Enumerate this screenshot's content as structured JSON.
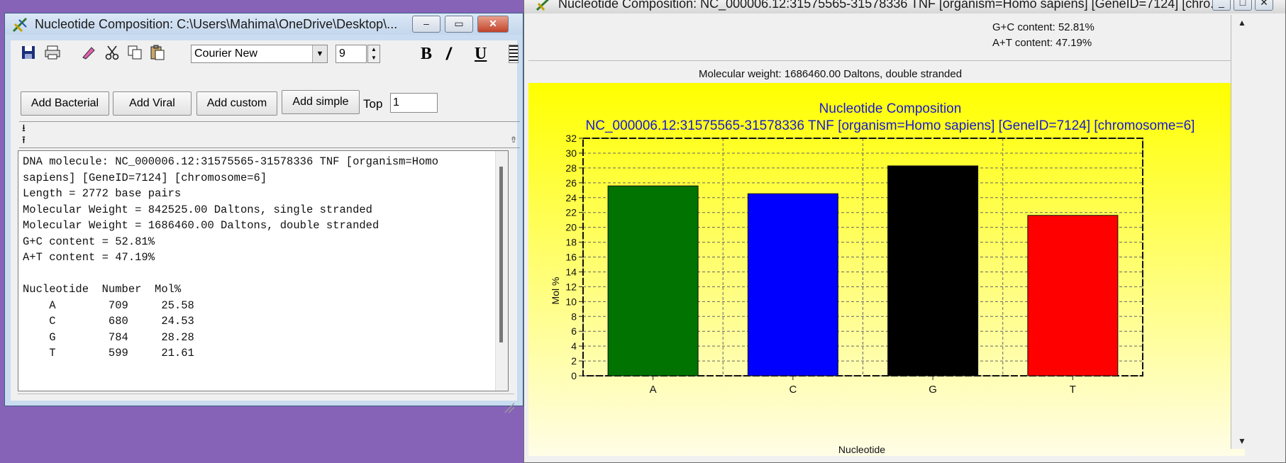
{
  "left_window": {
    "title": "Nucleotide Composition: C:\\Users\\Mahima\\OneDrive\\Desktop\\...",
    "caption_buttons": {
      "minimize": "–",
      "maximize": "▭",
      "close": "✕"
    },
    "toolbar": {
      "font_name": "Courier New",
      "font_size": "9",
      "bold_label": "B",
      "italic_label": "/",
      "underline_label": "U"
    },
    "buttons": {
      "add_bacterial": "Add Bacterial",
      "add_viral": "Add Viral",
      "add_custom": "Add custom",
      "add_simple": "Add simple"
    },
    "top_label": "Top",
    "top_value": "1",
    "report_lines": [
      "DNA molecule: NC_000006.12:31575565-31578336 TNF [organism=Homo",
      "sapiens] [GeneID=7124] [chromosome=6]",
      "Length = 2772 base pairs",
      "Molecular Weight = 842525.00 Daltons, single stranded",
      "Molecular Weight = 1686460.00 Daltons, double stranded",
      "G+C content = 52.81%",
      "A+T content = 47.19%",
      "",
      "Nucleotide  Number  Mol%",
      "    A        709     25.58",
      "    C        680     24.53",
      "    G        784     28.28",
      "    T        599     21.61"
    ]
  },
  "right_window": {
    "title": "Nucleotide Composition: NC_000006.12:31575565-31578336 TNF [organism=Homo sapiens] [GeneID=7124] [chro...",
    "caption_buttons": {
      "minimize": "_",
      "maximize": "□",
      "close": "✕"
    },
    "gc_content": "G+C content: 52.81%",
    "at_content": "A+T content: 47.19%",
    "molecular_weight": "Molecular weight: 1686460.00 Daltons, double stranded",
    "scroll_up": "▲",
    "scroll_down": "▼"
  },
  "chart_data": {
    "type": "bar",
    "title": "Nucleotide Composition",
    "subtitle": "NC_000006.12:31575565-31578336 TNF [organism=Homo sapiens] [GeneID=7124] [chromosome=6]",
    "xlabel": "Nucleotide",
    "ylabel": "Mol %",
    "categories": [
      "A",
      "C",
      "G",
      "T"
    ],
    "values": [
      25.58,
      24.53,
      28.28,
      21.61
    ],
    "colors": [
      "#007300",
      "#0000ff",
      "#000000",
      "#ff0000"
    ],
    "ylim": [
      0,
      32
    ],
    "yticks": [
      0,
      2,
      4,
      6,
      8,
      10,
      12,
      14,
      16,
      18,
      20,
      22,
      24,
      26,
      28,
      30,
      32
    ],
    "grid": true,
    "background_top": "#ffff00",
    "background_bottom": "#fffde6"
  }
}
